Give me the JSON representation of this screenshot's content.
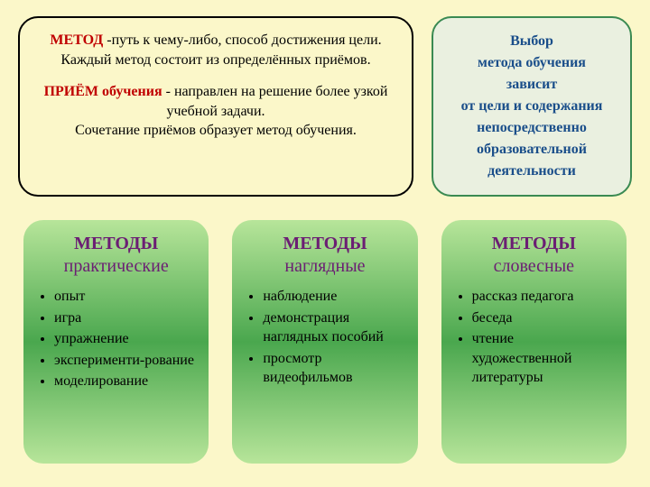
{
  "colors": {
    "slide_bg": "#fbf7c9",
    "def_bg": "#fbf7c9",
    "def_border": "#000000",
    "def_hl": "#c00000",
    "def_text": "#000000",
    "choice_bg": "#eaf0e0",
    "choice_border": "#3a8a52",
    "choice_text": "#1a4e8a",
    "card_bg_top": "#b7e59a",
    "card_bg_mid": "#4aa74e",
    "card_bg_bot": "#b7e59a",
    "card_title": "#6b1e73",
    "card_text": "#000000"
  },
  "def_box": {
    "method_label": "МЕТОД",
    "method_rest": " -путь к чему-либо, способ достижения цели.",
    "method_line2": "Каждый метод состоит из определённых приёмов.",
    "priem_label": "ПРИЁМ обучения",
    "priem_rest": " - направлен на решение более узкой учебной задачи.",
    "priem_line2": "Сочетание приёмов образует метод обучения."
  },
  "choice_box": {
    "l1": "Выбор",
    "l2": "метода обучения",
    "l3": "зависит",
    "l4": "от цели и содержания",
    "l5": "непосредственно",
    "l6": "образовательной",
    "l7": "деятельности"
  },
  "cards": [
    {
      "title_top": "МЕТОДЫ",
      "title_sub": "практические",
      "items": [
        "опыт",
        "игра",
        " упражнение",
        "эксперименти-рование",
        " моделирование"
      ]
    },
    {
      "title_top": "МЕТОДЫ",
      "title_sub": "наглядные",
      "items": [
        "наблюдение",
        "демонстрация наглядных пособий",
        "просмотр видеофильмов"
      ]
    },
    {
      "title_top": "МЕТОДЫ",
      "title_sub": "словесные",
      "items": [
        "рассказ педагога",
        "беседа",
        "чтение художественной литературы"
      ]
    }
  ]
}
